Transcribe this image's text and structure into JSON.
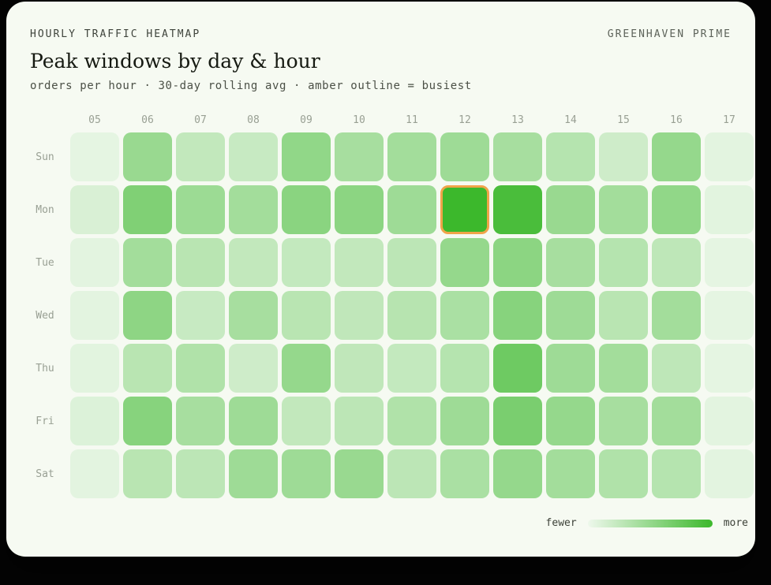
{
  "header": {
    "eyebrow": "HOURLY TRAFFIC HEATMAP",
    "brand": "GREENHAVEN PRIME",
    "title": "Peak windows by day & hour",
    "subtitle": "orders per hour · 30-day rolling avg · amber outline = busiest"
  },
  "legend": {
    "fewer_label": "fewer",
    "more_label": "more"
  },
  "colors": {
    "scale_low": "#eef8ec",
    "scale_high": "#3cb82c",
    "busiest_outline": "#f0a449",
    "card_background": "#f6faf2"
  },
  "chart_data": {
    "type": "heatmap",
    "title": "Peak windows by day & hour",
    "unit": "orders per hour (30-day rolling avg, relative intensity 0-1)",
    "rows": [
      "Sun",
      "Mon",
      "Tue",
      "Wed",
      "Thu",
      "Fri",
      "Sat"
    ],
    "columns": [
      "05",
      "06",
      "07",
      "08",
      "09",
      "10",
      "11",
      "12",
      "13",
      "14",
      "15",
      "16",
      "17"
    ],
    "values": [
      [
        0.05,
        0.48,
        0.25,
        0.22,
        0.52,
        0.4,
        0.42,
        0.45,
        0.4,
        0.32,
        0.18,
        0.5,
        0.06
      ],
      [
        0.12,
        0.62,
        0.46,
        0.42,
        0.56,
        0.55,
        0.45,
        1.0,
        0.92,
        0.48,
        0.42,
        0.52,
        0.07
      ],
      [
        0.06,
        0.42,
        0.3,
        0.25,
        0.24,
        0.25,
        0.28,
        0.5,
        0.55,
        0.4,
        0.32,
        0.27,
        0.05
      ],
      [
        0.06,
        0.54,
        0.22,
        0.4,
        0.3,
        0.26,
        0.31,
        0.38,
        0.58,
        0.45,
        0.3,
        0.42,
        0.05
      ],
      [
        0.07,
        0.3,
        0.35,
        0.18,
        0.5,
        0.26,
        0.24,
        0.32,
        0.72,
        0.45,
        0.42,
        0.27,
        0.05
      ],
      [
        0.1,
        0.58,
        0.4,
        0.45,
        0.25,
        0.28,
        0.35,
        0.45,
        0.65,
        0.5,
        0.4,
        0.42,
        0.06
      ],
      [
        0.06,
        0.3,
        0.28,
        0.45,
        0.45,
        0.48,
        0.28,
        0.38,
        0.5,
        0.42,
        0.35,
        0.32,
        0.06
      ]
    ],
    "busiest_cell": {
      "row": "Mon",
      "column": "12"
    },
    "legend": {
      "left": "fewer",
      "right": "more",
      "position": "bottom-right"
    }
  }
}
